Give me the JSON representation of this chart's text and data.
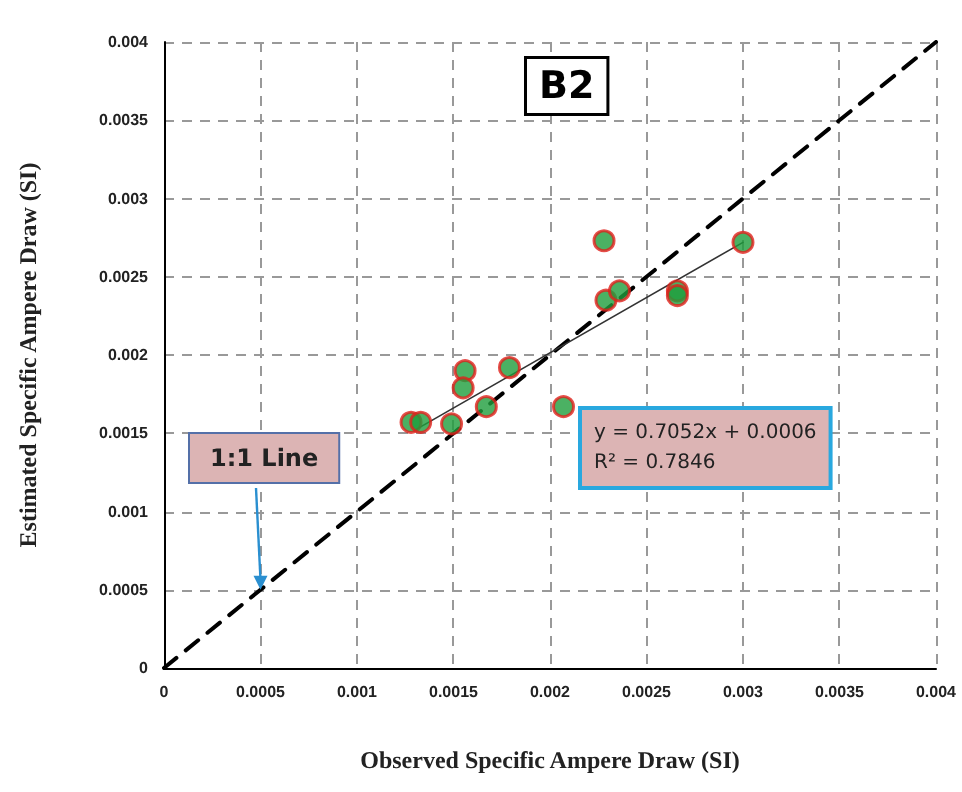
{
  "chart_data": {
    "type": "scatter",
    "xlabel": "Observed Specific Ampere Draw (SI)",
    "ylabel": "Estimated Specific Ampere Draw (SI)",
    "annotations": [
      "B2",
      {
        "text": "1:1 Line",
        "x": 0.0005,
        "y": 0.0005
      },
      "y = 0.7052x + 0.0006",
      "R² = 0.7846"
    ],
    "xlim": [
      0,
      0.004
    ],
    "ylim": [
      0,
      0.004
    ],
    "xticks": [
      0,
      0.0005,
      0.001,
      0.0015,
      0.002,
      0.0025,
      0.003,
      0.0035,
      0.004
    ],
    "yticks": [
      0,
      0.0005,
      0.001,
      0.0015,
      0.002,
      0.0025,
      0.003,
      0.0035,
      0.004
    ],
    "grid": true,
    "marker": "circle",
    "series": [
      {
        "type": "line",
        "color": "#000000",
        "line_style": "dashed",
        "marker": "none",
        "x": [
          0,
          0.004
        ],
        "values": [
          0,
          0.004
        ]
      },
      {
        "type": "line",
        "color": "#333333",
        "line_style": "solid",
        "marker": "none",
        "x": [
          0.0013,
          0.003
        ],
        "values": [
          0.00152,
          0.00272
        ]
      },
      {
        "color": "#1e9e3c",
        "x": [
          0.00128,
          0.00133,
          0.00149,
          0.00156,
          0.00155,
          0.00167,
          0.00179,
          0.00207,
          0.00228,
          0.00229,
          0.00236,
          0.00266,
          0.00266,
          0.003
        ],
        "values": [
          0.00157,
          0.00157,
          0.00156,
          0.0019,
          0.00179,
          0.00167,
          0.00192,
          0.00167,
          0.00273,
          0.00235,
          0.00241,
          0.00241,
          0.00238,
          0.00272
        ]
      }
    ]
  }
}
